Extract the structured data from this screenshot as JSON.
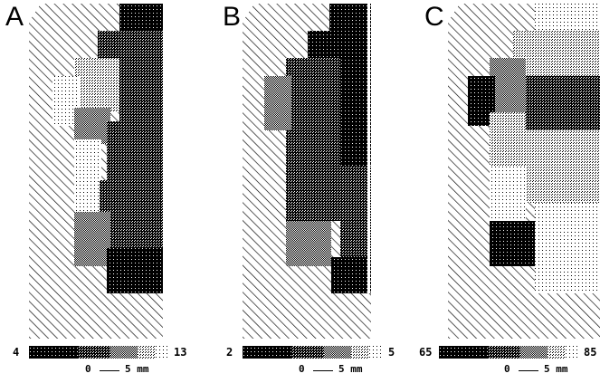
{
  "panels": [
    {
      "letter": "A",
      "cb_min": "4",
      "cb_max": "13"
    },
    {
      "letter": "B",
      "cb_min": "2",
      "cb_max": "5"
    },
    {
      "letter": "C",
      "cb_min": "65",
      "cb_max": "85"
    }
  ],
  "scale_bar": {
    "zero": "0",
    "label": "5 mm"
  },
  "colors": {
    "ink": "#000000",
    "paper": "#ffffff"
  }
}
